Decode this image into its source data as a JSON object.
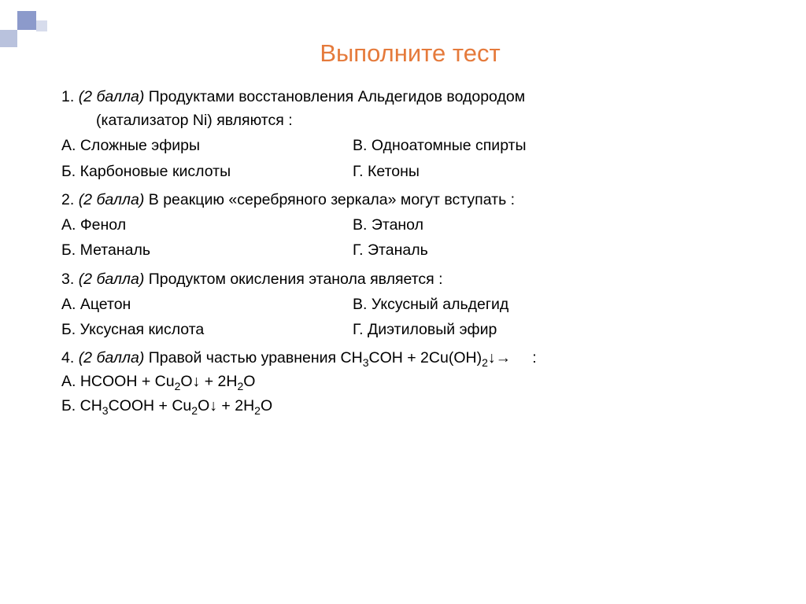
{
  "title_color": "#e57a3b",
  "title": "Выполните тест",
  "q1": {
    "num": "1.",
    "points": "(2 балла)",
    "stem1": " Продуктами восстановления Альдегидов водородом",
    "stem2": "(катализатор Ni) являются :",
    "a": "А. Сложные эфиры",
    "b": "Б. Карбоновые кислоты",
    "v": "В. Одноатомные спирты",
    "g": "Г. Кетоны"
  },
  "q2": {
    "num": "2.",
    "points": "(2 балла)",
    "stem": " В реакцию «серебряного зеркала» могут вступать :",
    "a": "А. Фенол",
    "b": "Б. Метаналь",
    "v": "В. Этанол",
    "g": "Г. Этаналь"
  },
  "q3": {
    "num": "3.",
    "points": "(2 балла)",
    "stem": " Продуктом   окисления этанола является :",
    "a": "А. Ацетон",
    "b": "Б. Уксусная кислота",
    "v": "В. Уксусный альдегид",
    "g": "Г. Диэтиловый эфир"
  },
  "q4": {
    "num": "4.",
    "points": "(2 балла)",
    "stem_pre": " Правой частью уравнения ",
    "eq": "CH<sub>3</sub>COH + 2Cu(OH)<sub>2</sub>↓→",
    "colon": "     :",
    "a": "А. HCOOH + Cu<sub>2</sub>O↓ + 2H<sub>2</sub>O",
    "b": "Б. CH<sub>3</sub>COOH + Cu<sub>2</sub>O↓ + 2H<sub>2</sub>O"
  },
  "deco": {
    "c1": "#8c9acb",
    "c2": "#b9c2dd",
    "c3": "#d7dcec"
  }
}
